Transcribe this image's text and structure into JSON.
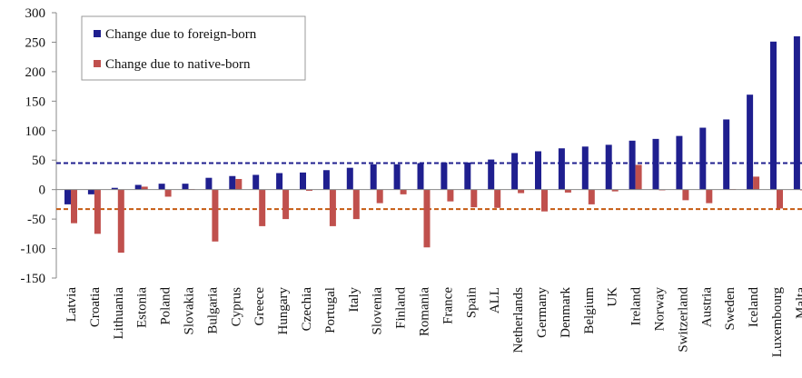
{
  "chart_data": {
    "type": "bar",
    "title": "",
    "xlabel": "",
    "ylabel": "",
    "ylim": [
      -150,
      300
    ],
    "yticks": [
      -150,
      -100,
      -50,
      0,
      50,
      100,
      150,
      200,
      250,
      300
    ],
    "grid": false,
    "legend_position": "top-left",
    "categories": [
      "Latvia",
      "Croatia",
      "Lithuania",
      "Estonia",
      "Poland",
      "Slovakia",
      "Bulgaria",
      "Cyprus",
      "Greece",
      "Hungary",
      "Czechia",
      "Portugal",
      "Italy",
      "Slovenia",
      "Finland",
      "Romania",
      "France",
      "Spain",
      "ALL",
      "Netherlands",
      "Germany",
      "Denmark",
      "Belgium",
      "UK",
      "Ireland",
      "Norway",
      "Switzerland",
      "Austria",
      "Sweden",
      "Iceland",
      "Luxembourg",
      "Malta"
    ],
    "series": [
      {
        "name": "Change due to foreign-born",
        "color": "#1f1f8f",
        "values": [
          -25,
          -8,
          3,
          8,
          10,
          10,
          20,
          23,
          25,
          28,
          29,
          33,
          37,
          43,
          43,
          45,
          46,
          46,
          51,
          62,
          65,
          70,
          73,
          76,
          83,
          86,
          91,
          105,
          119,
          161,
          251,
          260
        ]
      },
      {
        "name": "Change due to native-born",
        "color": "#c0504d",
        "values": [
          -57,
          -75,
          -107,
          5,
          -12,
          1,
          -88,
          18,
          -62,
          -50,
          -2,
          -62,
          -50,
          -23,
          -8,
          -98,
          -20,
          -30,
          -31,
          -6,
          -37,
          -5,
          -25,
          -3,
          42,
          0,
          -18,
          -23,
          1,
          22,
          -32,
          0
        ]
      }
    ],
    "reference_lines": [
      {
        "series": "Change due to foreign-born",
        "value": 45,
        "style": "dashed",
        "color": "#1f1f8f"
      },
      {
        "series": "Change due to native-born",
        "value": -33,
        "style": "dashed",
        "color": "#c55a11"
      }
    ]
  }
}
